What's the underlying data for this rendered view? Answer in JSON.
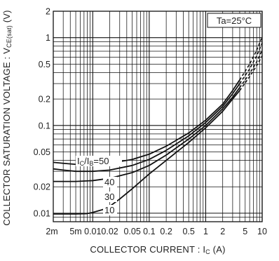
{
  "chart_data": {
    "type": "line",
    "xlabel": {
      "main": "COLLECTOR  CURRENT : I",
      "sub": "C",
      "unit": " (A)"
    },
    "ylabel": {
      "main": "COLLECTOR  SATURATION  VOLTAGE : V",
      "sub": "CE(sat)",
      "unit": " (V)"
    },
    "x_scale": "log",
    "y_scale": "log",
    "xlim": [
      0.002,
      10
    ],
    "ylim": [
      0.008,
      2
    ],
    "grid": true,
    "x_ticks": [
      {
        "value": 0.002,
        "label": "2m"
      },
      {
        "value": 0.005,
        "label": "5m"
      },
      {
        "value": 0.01,
        "label": "0.01"
      },
      {
        "value": 0.02,
        "label": "0.02"
      },
      {
        "value": 0.05,
        "label": "0.05"
      },
      {
        "value": 0.1,
        "label": "0.1"
      },
      {
        "value": 0.2,
        "label": "0.2"
      },
      {
        "value": 0.5,
        "label": "0.5"
      },
      {
        "value": 1,
        "label": "1"
      },
      {
        "value": 2,
        "label": "2"
      },
      {
        "value": 5,
        "label": "5"
      },
      {
        "value": 10,
        "label": "10"
      }
    ],
    "y_ticks": [
      {
        "value": 0.01,
        "label": "0.01"
      },
      {
        "value": 0.02,
        "label": "0.02"
      },
      {
        "value": 0.05,
        "label": "0.05"
      },
      {
        "value": 0.1,
        "label": "0.1"
      },
      {
        "value": 0.2,
        "label": "0.2"
      },
      {
        "value": 0.5,
        "label": "0.5"
      },
      {
        "value": 1,
        "label": "1"
      },
      {
        "value": 2,
        "label": "2"
      }
    ],
    "annotation": "Ta=25°C",
    "series": [
      {
        "name": "50",
        "label_prefix": "IC/IB=",
        "solid": [
          [
            0.002,
            0.038
          ],
          [
            0.003,
            0.037
          ],
          [
            0.005,
            0.036
          ],
          [
            0.01,
            0.036
          ],
          [
            0.02,
            0.037
          ],
          [
            0.05,
            0.041
          ],
          [
            0.1,
            0.047
          ],
          [
            0.2,
            0.058
          ],
          [
            0.5,
            0.082
          ],
          [
            1,
            0.115
          ],
          [
            2,
            0.175
          ],
          [
            3,
            0.25
          ],
          [
            4,
            0.33
          ]
        ],
        "dashed": [
          [
            4,
            0.33
          ],
          [
            6,
            0.5
          ],
          [
            8,
            0.72
          ],
          [
            10,
            1.02
          ]
        ]
      },
      {
        "name": "40",
        "solid": [
          [
            0.002,
            0.032
          ],
          [
            0.003,
            0.031
          ],
          [
            0.005,
            0.03
          ],
          [
            0.01,
            0.03
          ],
          [
            0.02,
            0.031
          ],
          [
            0.05,
            0.035
          ],
          [
            0.1,
            0.041
          ],
          [
            0.2,
            0.052
          ],
          [
            0.5,
            0.076
          ],
          [
            1,
            0.108
          ],
          [
            2,
            0.165
          ],
          [
            3,
            0.23
          ],
          [
            4,
            0.3
          ]
        ],
        "dashed": [
          [
            4,
            0.3
          ],
          [
            6,
            0.44
          ],
          [
            8,
            0.62
          ],
          [
            10,
            0.87
          ]
        ]
      },
      {
        "name": "30",
        "solid": [
          [
            0.002,
            0.023
          ],
          [
            0.003,
            0.023
          ],
          [
            0.005,
            0.023
          ],
          [
            0.01,
            0.0235
          ],
          [
            0.02,
            0.025
          ],
          [
            0.05,
            0.029
          ],
          [
            0.1,
            0.035
          ],
          [
            0.2,
            0.046
          ],
          [
            0.5,
            0.07
          ],
          [
            1,
            0.1
          ],
          [
            2,
            0.155
          ],
          [
            3,
            0.21
          ],
          [
            4,
            0.27
          ]
        ],
        "dashed": [
          [
            4,
            0.27
          ],
          [
            6,
            0.39
          ],
          [
            8,
            0.53
          ],
          [
            10,
            0.72
          ]
        ]
      },
      {
        "name": "10",
        "solid": [
          [
            0.002,
            0.0098
          ],
          [
            0.003,
            0.0098
          ],
          [
            0.005,
            0.0098
          ],
          [
            0.008,
            0.0099
          ],
          [
            0.01,
            0.0102
          ],
          [
            0.015,
            0.011
          ],
          [
            0.02,
            0.012
          ],
          [
            0.03,
            0.0145
          ],
          [
            0.05,
            0.019
          ],
          [
            0.1,
            0.028
          ],
          [
            0.2,
            0.04
          ],
          [
            0.5,
            0.064
          ],
          [
            1,
            0.094
          ],
          [
            2,
            0.145
          ],
          [
            3,
            0.2
          ],
          [
            4,
            0.25
          ]
        ],
        "dashed": [
          [
            4,
            0.25
          ],
          [
            6,
            0.36
          ],
          [
            8,
            0.48
          ],
          [
            10,
            0.62
          ]
        ]
      }
    ],
    "curve_labels": [
      {
        "series": "50",
        "text_parts": [
          {
            "t": "I"
          },
          {
            "t": "C",
            "sub": true
          },
          {
            "t": "/I"
          },
          {
            "t": "B",
            "sub": true
          },
          {
            "t": "=50"
          }
        ]
      },
      {
        "series": "40",
        "text": "40"
      },
      {
        "series": "30",
        "text": "30"
      },
      {
        "series": "10",
        "text": "10"
      }
    ]
  }
}
